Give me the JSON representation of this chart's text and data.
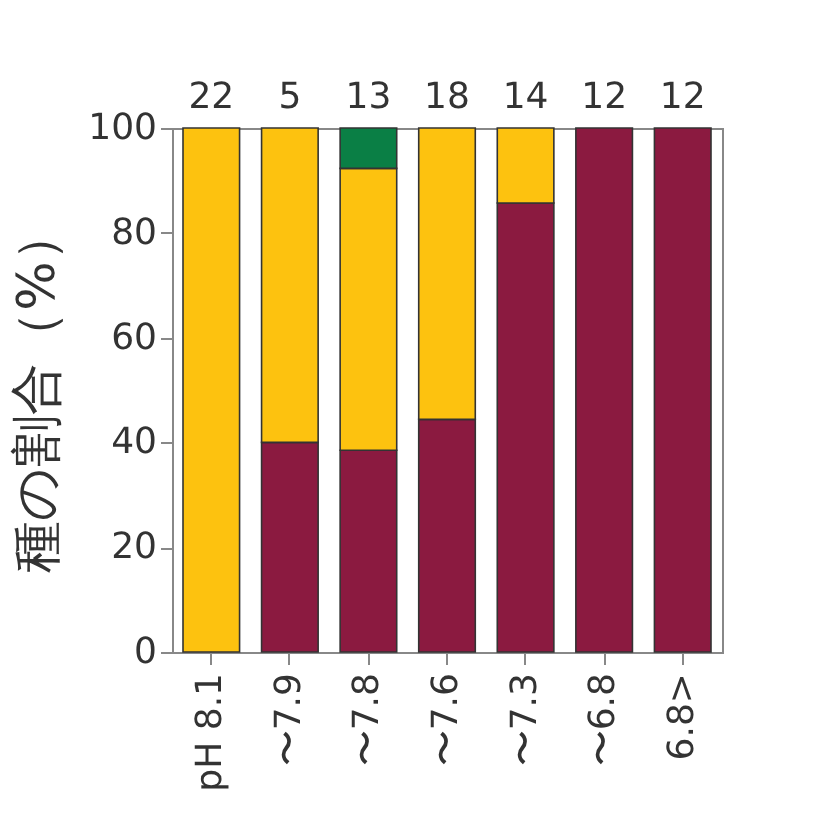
{
  "chart_data": {
    "type": "bar",
    "stacked": true,
    "ylabel": "種の割合（%）",
    "categories": [
      "pH 8.1",
      "〜7.9",
      "〜7.8",
      "〜7.6",
      "〜7.3",
      "〜6.8",
      "6.8>"
    ],
    "series": [
      {
        "color": "#8b1a40",
        "values": [
          null,
          40,
          38.5,
          44.4,
          85.7,
          100,
          100
        ]
      },
      {
        "color": "#fdc20f",
        "values": [
          100,
          60,
          53.8,
          55.6,
          14.3,
          null,
          null
        ]
      },
      {
        "color": "#0a7f45",
        "values": [
          null,
          null,
          7.7,
          null,
          null,
          null,
          null
        ]
      }
    ],
    "ylim": [
      0,
      100
    ],
    "yticks": [
      0,
      20,
      40,
      60,
      80,
      100
    ],
    "grid": false,
    "legend": false,
    "annotations": [
      "22",
      "5",
      "13",
      "18",
      "14",
      "12",
      "12"
    ]
  }
}
